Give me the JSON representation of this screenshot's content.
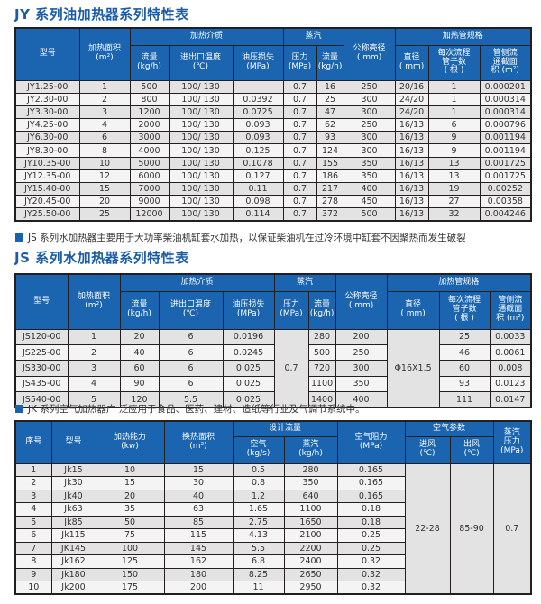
{
  "jy": {
    "title": "JY 系列油加热器系列特性表",
    "headers": {
      "model": "型号",
      "area": "加热面积",
      "area_unit": "(m²)",
      "medium": "加热介质",
      "flow": "流量",
      "flow_unit": "(kg/h)",
      "temp": "进出口温度",
      "temp_unit": "(℃)",
      "oil_loss": "油压损失",
      "oil_loss_unit": "(MPa)",
      "steam": "蒸汽",
      "pressure": "压力",
      "pressure_unit": "(MPa)",
      "steam_flow": "流量",
      "steam_flow_unit": "(kg/h)",
      "shell": "公称壳径",
      "shell_unit": "( mm)",
      "tube": "加热管规格",
      "dia": "直径",
      "dia_unit": "( mm)",
      "tubes": "每次流程",
      "tubes2": "管子数",
      "tubes_unit": "( 根 )",
      "section": "管侧流",
      "section2": "通截面",
      "section3": "积 (m²)"
    },
    "rows": [
      [
        "JY1.25-00",
        "1",
        "500",
        "100/ 130",
        "",
        "0.7",
        "16",
        "250",
        "20/16",
        "1",
        "0.000201"
      ],
      [
        "JY2.30-00",
        "2",
        "800",
        "100/ 130",
        "0.0392",
        "0.7",
        "25",
        "300",
        "24/20",
        "1",
        "0.000314"
      ],
      [
        "JY3.30-00",
        "3",
        "1200",
        "100/ 130",
        "0.0725",
        "0.7",
        "47",
        "300",
        "24/20",
        "1",
        "0.000314"
      ],
      [
        "JY4.25-00",
        "4",
        "2000",
        "100/ 130",
        "0.093",
        "0.7",
        "62",
        "250",
        "16/13",
        "6",
        "0.000796"
      ],
      [
        "JY6.30-00",
        "6",
        "3000",
        "100/ 130",
        "0.093",
        "0.7",
        "93",
        "300",
        "16/13",
        "9",
        "0.001194"
      ],
      [
        "JY8.30-00",
        "8",
        "4000",
        "100/ 130",
        "0.125",
        "0.7",
        "124",
        "300",
        "16/13",
        "9",
        "0.001194"
      ],
      [
        "JY10.35-00",
        "10",
        "5000",
        "100/ 130",
        "0.1078",
        "0.7",
        "155",
        "350",
        "16/13",
        "13",
        "0.001725"
      ],
      [
        "JY12.35-00",
        "12",
        "6000",
        "100/ 130",
        "0.127",
        "0.7",
        "186",
        "350",
        "16/13",
        "13",
        "0.001725"
      ],
      [
        "JY15.40-00",
        "15",
        "7000",
        "100/ 130",
        "0.11",
        "0.7",
        "217",
        "400",
        "16/13",
        "19",
        "0.00252"
      ],
      [
        "JY20.45-00",
        "20",
        "9000",
        "100/ 130",
        "0.098",
        "0.7",
        "278",
        "450",
        "16/13",
        "27",
        "0.00358"
      ],
      [
        "JY25.50-00",
        "25",
        "12000",
        "100/ 130",
        "0.114",
        "0.7",
        "372",
        "500",
        "16/13",
        "32",
        "0.004246"
      ]
    ]
  },
  "js": {
    "note": "JS 系列水加热器主要用于大功率柴油机缸套水加热，以保证柴油机在过冷环境中缸套不因聚热而发生破裂",
    "title": "JS 系列水加热器系列特性表",
    "headers": {
      "model": "型号",
      "area": "加热面积",
      "area_unit": "(m²)",
      "medium": "加热介质",
      "flow": "流量",
      "flow_unit": "(kg/h)",
      "temp": "进出口温度",
      "temp_unit": "(℃)",
      "oil_loss": "油压损失",
      "oil_loss_unit": "(MPa)",
      "steam": "蒸汽",
      "pressure": "压力",
      "pressure_unit": "(MPa)",
      "steam_flow": "流量",
      "steam_flow_unit": "(kg/h)",
      "shell": "公称壳径",
      "shell_unit": "( mm)",
      "tube": "加热管规格",
      "dia": "直径",
      "dia_unit": "( mm)",
      "tubes": "每次流程",
      "tubes2": "管子数",
      "tubes_unit": "( 根 )",
      "section": "管侧流",
      "section2": "通截面",
      "section3": "积 (m²)"
    },
    "pressure_value": "0.7",
    "dia_value": "Φ16X1.5",
    "rows": [
      [
        "JS120-00",
        "1",
        "20",
        "6",
        "0.0196",
        "280",
        "200",
        "25",
        "0.0033"
      ],
      [
        "JS225-00",
        "2",
        "40",
        "6",
        "0.0245",
        "500",
        "250",
        "46",
        "0.0061"
      ],
      [
        "JS330-00",
        "3",
        "60",
        "6",
        "0.025",
        "720",
        "300",
        "60",
        "0.008"
      ],
      [
        "JS435-00",
        "4",
        "90",
        "6",
        "0.025",
        "1100",
        "350",
        "93",
        "0.0123"
      ],
      [
        "JS540-00",
        "5",
        "120",
        "5.5",
        "0.025",
        "1400",
        "400",
        "111",
        "0.0147"
      ]
    ]
  },
  "jk": {
    "note": "JK 系列空气加热器广 泛应用于食品、医药、建材、造纸等行业及气调节系统中。",
    "headers": {
      "no": "序号",
      "model": "型号",
      "power": "加热能力",
      "power_unit": "(kw)",
      "area": "换热面积",
      "area_unit": "(m²)",
      "design_flow": "设计流量",
      "air": "空气",
      "air_unit": "(kg/s)",
      "steam": "蒸汽",
      "steam_unit": "(kg/h)",
      "resist": "空气阻力",
      "resist_unit": "(MPa)",
      "air_params": "空气参数",
      "in": "进风",
      "in_unit": "(℃)",
      "out": "出风",
      "out_unit": "(℃)",
      "steam_p": "蒸汽",
      "steam_p2": "压力",
      "steam_p_unit": "(MPa)"
    },
    "in_value": "22-28",
    "out_value": "85-90",
    "steam_p_value": "0.7",
    "rows": [
      [
        "1",
        "Jk15",
        "10",
        "15",
        "0.5",
        "280",
        "0.165"
      ],
      [
        "2",
        "Jk30",
        "15",
        "30",
        "0.8",
        "350",
        "0.165"
      ],
      [
        "3",
        "Jk40",
        "20",
        "40",
        "1.2",
        "640",
        "0.165"
      ],
      [
        "4",
        "Jk63",
        "35",
        "63",
        "1.65",
        "1100",
        "0.18"
      ],
      [
        "5",
        "Jk85",
        "50",
        "85",
        "2.75",
        "1650",
        "0.18"
      ],
      [
        "6",
        "Jk115",
        "75",
        "115",
        "4.13",
        "2100",
        "0.25"
      ],
      [
        "7",
        "JK145",
        "100",
        "145",
        "5.5",
        "2200",
        "0.25"
      ],
      [
        "8",
        "Jk162",
        "125",
        "162",
        "6.8",
        "2400",
        "0.32"
      ],
      [
        "9",
        "Jk180",
        "150",
        "180",
        "8.25",
        "2650",
        "0.32"
      ],
      [
        "10",
        "Jk200",
        "175",
        "200",
        "11",
        "2950",
        "0.32"
      ]
    ]
  }
}
